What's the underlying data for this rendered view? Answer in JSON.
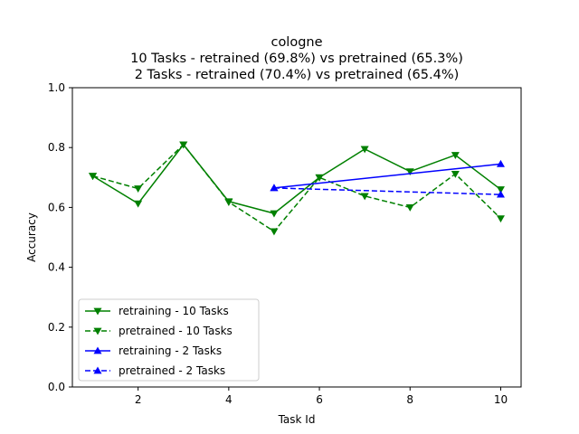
{
  "chart_data": {
    "type": "line",
    "title_lines": [
      "cologne",
      "10 Tasks - retrained (69.8%) vs pretrained (65.3%)",
      "2 Tasks - retrained (70.4%) vs pretrained (65.4%)"
    ],
    "xlabel": "Task Id",
    "ylabel": "Accuracy",
    "xlim": [
      0.55,
      10.45
    ],
    "ylim": [
      0.0,
      1.0
    ],
    "xticks": [
      2,
      4,
      6,
      8,
      10
    ],
    "yticks": [
      0.0,
      0.2,
      0.4,
      0.6,
      0.8,
      1.0
    ],
    "xtick_labels": [
      "2",
      "4",
      "6",
      "8",
      "10"
    ],
    "ytick_labels": [
      "0.0",
      "0.2",
      "0.4",
      "0.6",
      "0.8",
      "1.0"
    ],
    "grid": false,
    "legend_position": "lower-left",
    "series": [
      {
        "name": "retraining - 10 Tasks",
        "color": "#008000",
        "linestyle": "solid",
        "marker": "triangle-down",
        "x": [
          1,
          2,
          3,
          4,
          5,
          6,
          7,
          8,
          9,
          10
        ],
        "y": [
          0.705,
          0.613,
          0.81,
          0.62,
          0.58,
          0.7,
          0.795,
          0.72,
          0.775,
          0.66
        ]
      },
      {
        "name": "pretrained - 10 Tasks",
        "color": "#008000",
        "linestyle": "dashed",
        "marker": "triangle-down",
        "x": [
          1,
          2,
          3,
          4,
          5,
          6,
          7,
          8,
          9,
          10
        ],
        "y": [
          0.705,
          0.663,
          0.81,
          0.618,
          0.52,
          0.7,
          0.638,
          0.6,
          0.712,
          0.563
        ]
      },
      {
        "name": "retraining - 2 Tasks",
        "color": "#0000ff",
        "linestyle": "solid",
        "marker": "triangle-up",
        "x": [
          5,
          10
        ],
        "y": [
          0.665,
          0.745
        ]
      },
      {
        "name": "pretrained - 2 Tasks",
        "color": "#0000ff",
        "linestyle": "dashed",
        "marker": "triangle-up",
        "x": [
          5,
          10
        ],
        "y": [
          0.665,
          0.643
        ]
      }
    ]
  }
}
